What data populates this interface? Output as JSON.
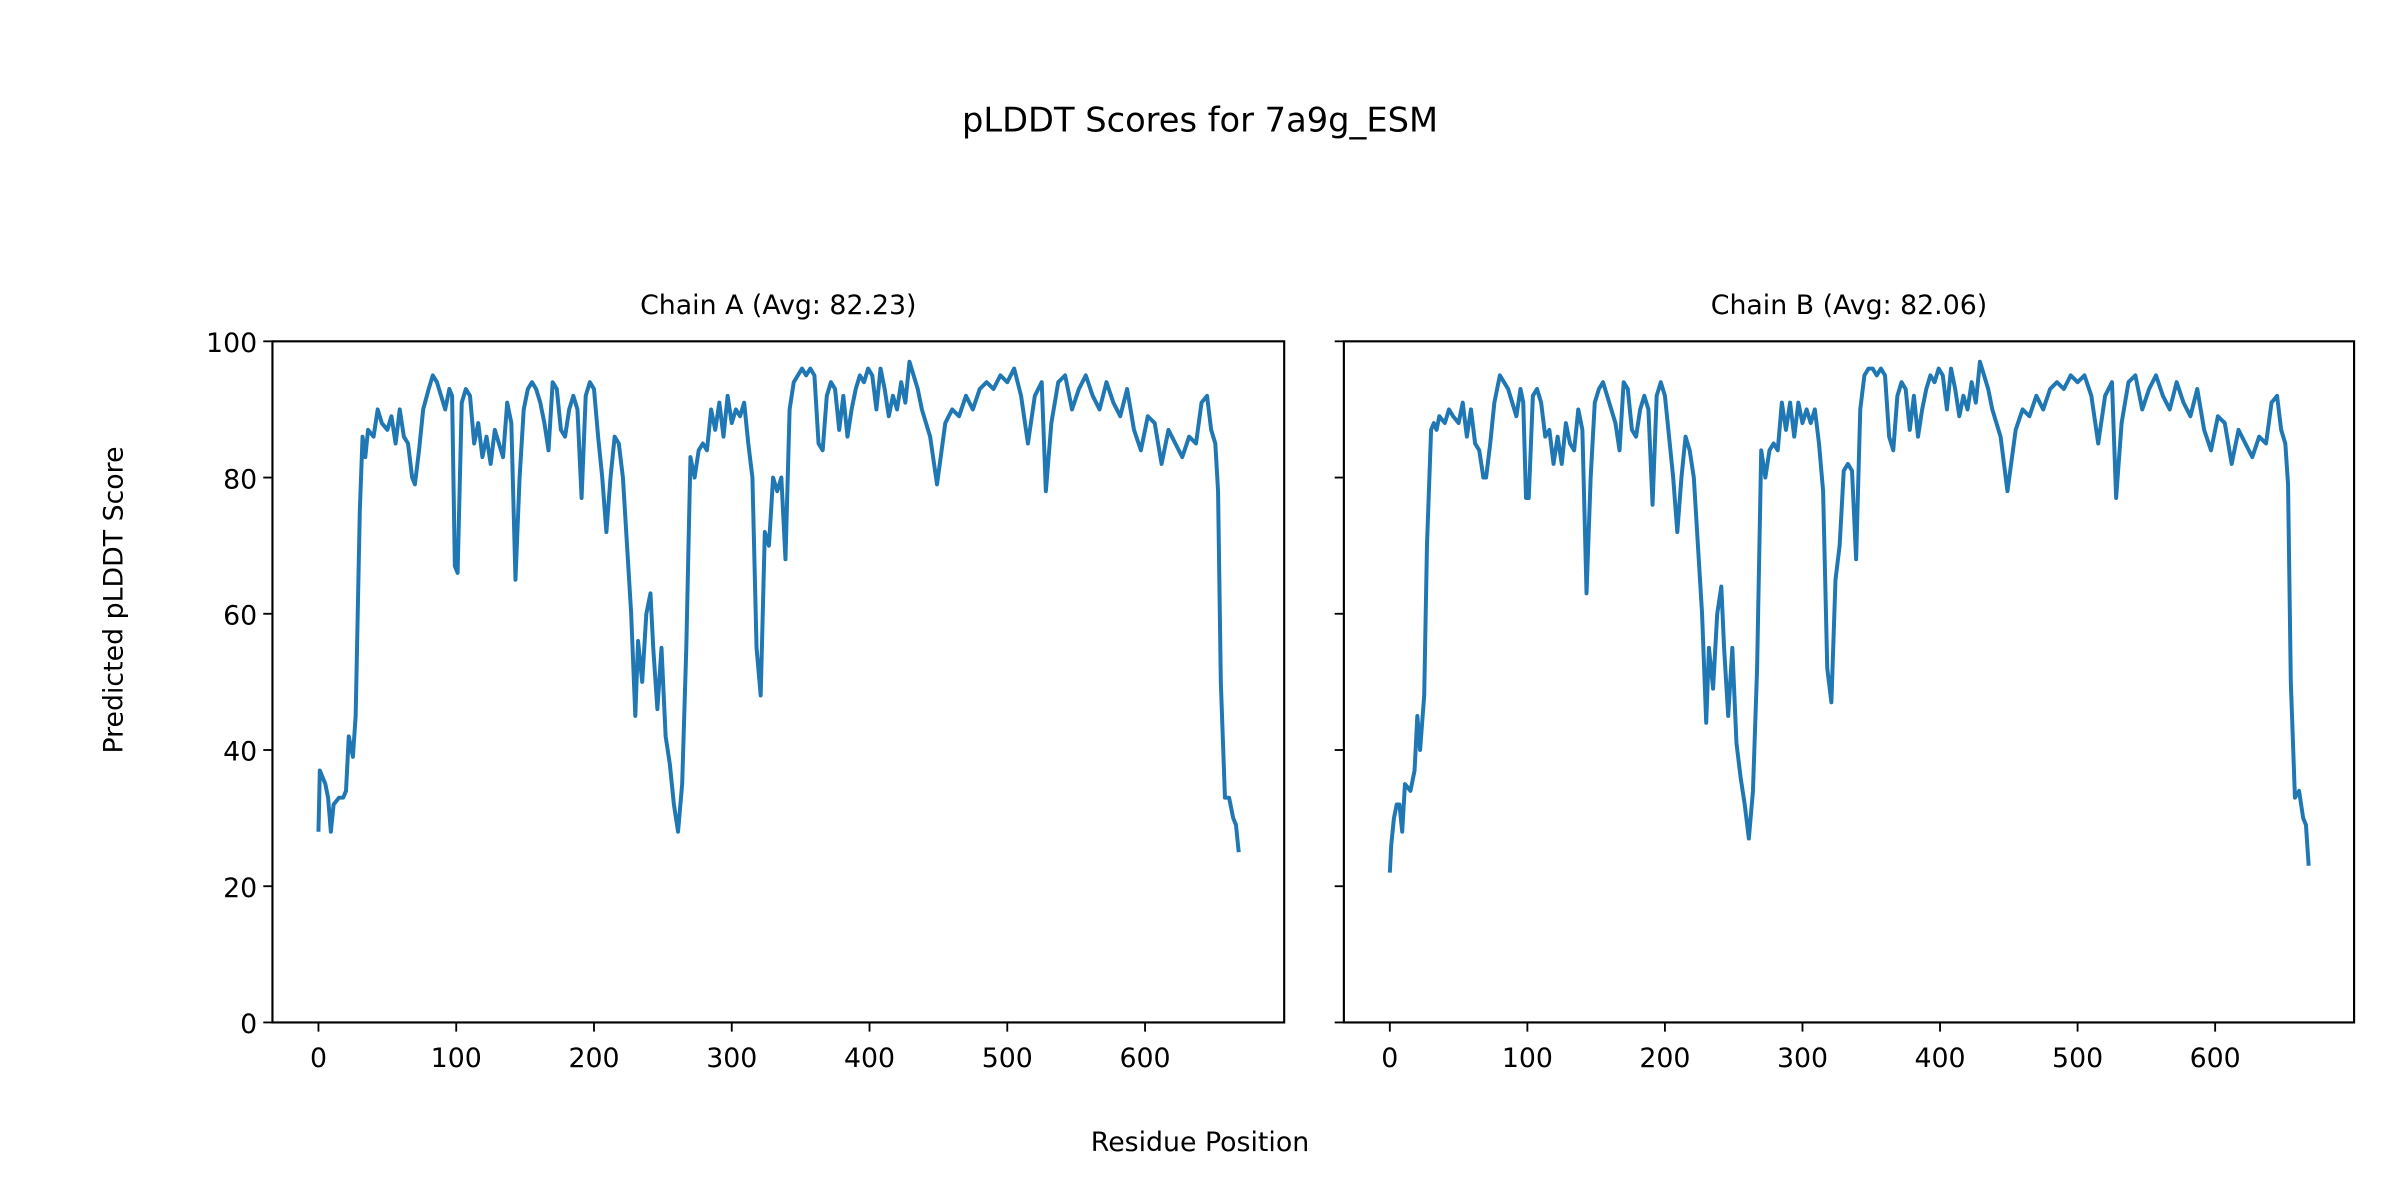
{
  "title": "pLDDT Scores for 7a9g_ESM",
  "xlabel": "Residue Position",
  "ylabel": "Predicted pLDDT Score",
  "chart_data": [
    {
      "type": "line",
      "title": "Chain A (Avg: 82.23)",
      "xlim": [
        -33.4,
        701
      ],
      "ylim": [
        0,
        100
      ],
      "xticks": [
        0,
        100,
        200,
        300,
        400,
        500,
        600
      ],
      "yticks": [
        0,
        20,
        40,
        60,
        80,
        100
      ],
      "series": [
        {
          "color": "#1f77b4",
          "x": [
            0,
            1,
            3,
            5,
            7,
            9,
            11,
            15,
            18,
            20,
            22,
            25,
            27,
            30,
            32,
            34,
            36,
            40,
            43,
            46,
            50,
            53,
            56,
            59,
            62,
            65,
            68,
            70,
            73,
            76,
            80,
            83,
            86,
            89,
            92,
            95,
            97,
            99,
            101,
            104,
            107,
            110,
            113,
            116,
            119,
            122,
            125,
            128,
            131,
            134,
            137,
            140,
            143,
            146,
            149,
            152,
            155,
            158,
            161,
            164,
            167,
            170,
            173,
            176,
            179,
            182,
            185,
            188,
            191,
            194,
            197,
            200,
            203,
            206,
            209,
            212,
            215,
            218,
            221,
            224,
            227,
            230,
            232,
            235,
            238,
            241,
            243,
            246,
            249,
            252,
            255,
            258,
            261,
            264,
            267,
            270,
            273,
            276,
            279,
            282,
            285,
            288,
            291,
            294,
            297,
            300,
            303,
            306,
            309,
            312,
            315,
            318,
            321,
            324,
            327,
            330,
            333,
            336,
            339,
            342,
            345,
            348,
            351,
            354,
            357,
            360,
            363,
            366,
            369,
            372,
            375,
            378,
            381,
            384,
            387,
            390,
            393,
            396,
            399,
            402,
            405,
            408,
            411,
            414,
            417,
            420,
            423,
            426,
            429,
            432,
            435,
            438,
            444,
            449,
            455,
            460,
            465,
            470,
            475,
            480,
            485,
            490,
            495,
            500,
            505,
            510,
            515,
            520,
            525,
            528,
            532,
            537,
            542,
            547,
            552,
            557,
            562,
            567,
            572,
            577,
            582,
            587,
            592,
            597,
            602,
            607,
            612,
            617,
            622,
            627,
            632,
            637,
            641,
            645,
            648,
            651,
            653,
            655,
            658,
            661,
            664,
            666,
            668
          ],
          "values": [
            28,
            37,
            36,
            35,
            33,
            28,
            32,
            33,
            33,
            34,
            42,
            39,
            45,
            75,
            86,
            83,
            87,
            86,
            90,
            88,
            87,
            89,
            85,
            90,
            86,
            85,
            80,
            79,
            84,
            90,
            93,
            95,
            94,
            92,
            90,
            93,
            92,
            67,
            66,
            91,
            93,
            92,
            85,
            88,
            83,
            86,
            82,
            87,
            85,
            83,
            91,
            88,
            65,
            80,
            90,
            93,
            94,
            93,
            91,
            88,
            84,
            94,
            93,
            87,
            86,
            90,
            92,
            90,
            77,
            92,
            94,
            93,
            86,
            80,
            72,
            80,
            86,
            85,
            80,
            70,
            60,
            45,
            56,
            50,
            60,
            63,
            55,
            46,
            55,
            42,
            38,
            32,
            28,
            35,
            55,
            83,
            80,
            84,
            85,
            84,
            90,
            87,
            91,
            86,
            92,
            88,
            90,
            89,
            91,
            85,
            80,
            55,
            48,
            72,
            70,
            80,
            78,
            80,
            68,
            90,
            94,
            95,
            96,
            95,
            96,
            95,
            85,
            84,
            92,
            94,
            93,
            87,
            92,
            86,
            90,
            93,
            95,
            94,
            96,
            95,
            90,
            96,
            93,
            89,
            92,
            90,
            94,
            91,
            97,
            95,
            93,
            90,
            86,
            79,
            88,
            90,
            89,
            92,
            90,
            93,
            94,
            93,
            95,
            94,
            96,
            92,
            85,
            92,
            94,
            78,
            88,
            94,
            95,
            90,
            93,
            95,
            92,
            90,
            94,
            91,
            89,
            93,
            87,
            84,
            89,
            88,
            82,
            87,
            85,
            83,
            86,
            85,
            91,
            92,
            87,
            85,
            78,
            50,
            33,
            33,
            30,
            29,
            25
          ]
        }
      ]
    },
    {
      "type": "line",
      "title": "Chain B (Avg: 82.06)",
      "xlim": [
        -33.4,
        701
      ],
      "ylim": [
        0,
        100
      ],
      "xticks": [
        0,
        100,
        200,
        300,
        400,
        500,
        600
      ],
      "yticks": [
        0,
        20,
        40,
        60,
        80,
        100
      ],
      "series": [
        {
          "color": "#1f77b4",
          "x": [
            0,
            1,
            3,
            5,
            7,
            9,
            11,
            15,
            18,
            20,
            22,
            25,
            27,
            30,
            32,
            34,
            36,
            40,
            43,
            46,
            50,
            53,
            56,
            59,
            62,
            65,
            68,
            70,
            73,
            76,
            80,
            83,
            86,
            89,
            92,
            95,
            97,
            99,
            101,
            104,
            107,
            110,
            113,
            116,
            119,
            122,
            125,
            128,
            131,
            134,
            137,
            140,
            143,
            146,
            149,
            152,
            155,
            158,
            161,
            164,
            167,
            170,
            173,
            176,
            179,
            182,
            185,
            188,
            191,
            194,
            197,
            200,
            203,
            206,
            209,
            212,
            215,
            218,
            221,
            224,
            227,
            230,
            232,
            235,
            238,
            241,
            243,
            246,
            249,
            252,
            255,
            258,
            261,
            264,
            267,
            270,
            273,
            276,
            279,
            282,
            285,
            288,
            291,
            294,
            297,
            300,
            303,
            306,
            309,
            312,
            315,
            318,
            321,
            324,
            327,
            330,
            333,
            336,
            339,
            342,
            345,
            348,
            351,
            354,
            357,
            360,
            363,
            366,
            369,
            372,
            375,
            378,
            381,
            384,
            387,
            390,
            393,
            396,
            399,
            402,
            405,
            408,
            411,
            414,
            417,
            420,
            423,
            426,
            429,
            432,
            435,
            438,
            444,
            449,
            455,
            460,
            465,
            470,
            475,
            480,
            485,
            490,
            495,
            500,
            505,
            510,
            515,
            520,
            525,
            528,
            532,
            537,
            542,
            547,
            552,
            557,
            562,
            567,
            572,
            577,
            582,
            587,
            592,
            597,
            602,
            607,
            612,
            617,
            622,
            627,
            632,
            637,
            641,
            645,
            648,
            651,
            653,
            655,
            658,
            661,
            664,
            666,
            668
          ],
          "values": [
            22,
            26,
            30,
            32,
            32,
            28,
            35,
            34,
            37,
            45,
            40,
            48,
            70,
            87,
            88,
            87,
            89,
            88,
            90,
            89,
            88,
            91,
            86,
            90,
            85,
            84,
            80,
            80,
            85,
            91,
            95,
            94,
            93,
            91,
            89,
            93,
            91,
            77,
            77,
            92,
            93,
            91,
            86,
            87,
            82,
            86,
            82,
            88,
            85,
            84,
            90,
            87,
            63,
            80,
            91,
            93,
            94,
            92,
            90,
            88,
            84,
            94,
            93,
            87,
            86,
            90,
            92,
            90,
            76,
            92,
            94,
            92,
            86,
            80,
            72,
            80,
            86,
            84,
            80,
            70,
            60,
            44,
            55,
            49,
            60,
            64,
            55,
            45,
            55,
            41,
            36,
            32,
            27,
            34,
            52,
            84,
            80,
            84,
            85,
            84,
            91,
            87,
            91,
            86,
            91,
            88,
            90,
            88,
            90,
            85,
            78,
            52,
            47,
            65,
            70,
            81,
            82,
            81,
            68,
            90,
            95,
            96,
            96,
            95,
            96,
            95,
            86,
            84,
            92,
            94,
            93,
            87,
            92,
            86,
            90,
            93,
            95,
            94,
            96,
            95,
            90,
            96,
            93,
            89,
            92,
            90,
            94,
            91,
            97,
            95,
            93,
            90,
            86,
            78,
            87,
            90,
            89,
            92,
            90,
            93,
            94,
            93,
            95,
            94,
            95,
            92,
            85,
            92,
            94,
            77,
            88,
            94,
            95,
            90,
            93,
            95,
            92,
            90,
            94,
            91,
            89,
            93,
            87,
            84,
            89,
            88,
            82,
            87,
            85,
            83,
            86,
            85,
            91,
            92,
            87,
            85,
            79,
            50,
            33,
            34,
            30,
            29,
            23
          ]
        }
      ]
    }
  ]
}
